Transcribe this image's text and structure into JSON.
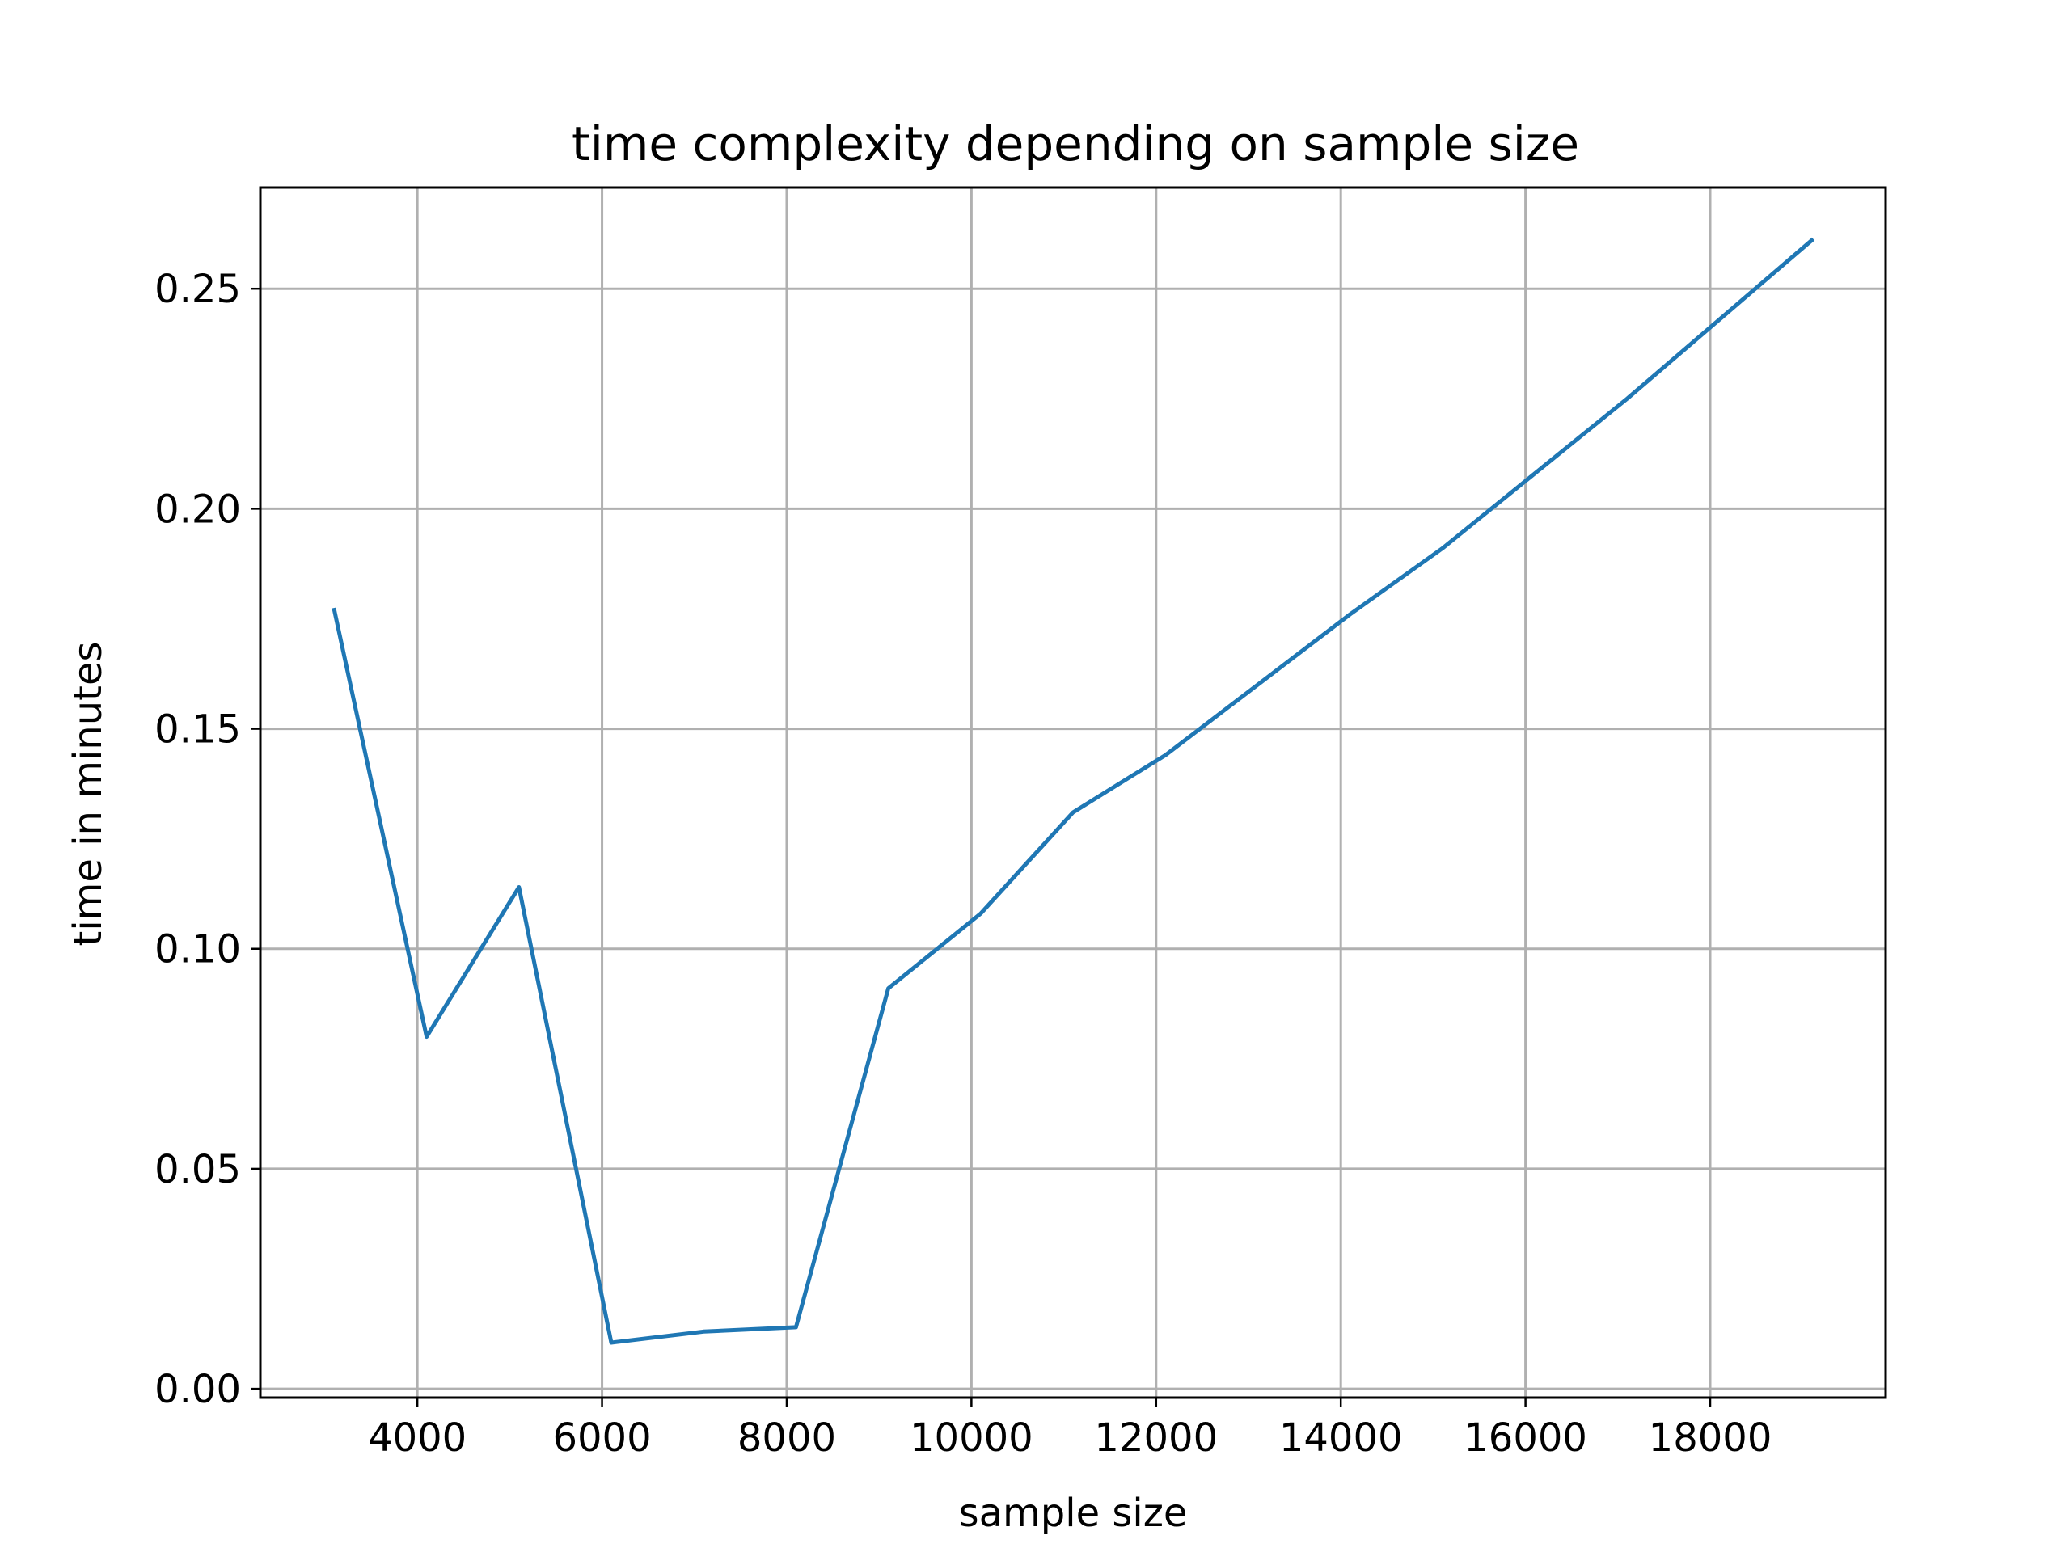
{
  "chart_data": {
    "type": "line",
    "title": "time complexity depending on sample size",
    "xlabel": "sample size",
    "ylabel": "time in minutes",
    "xlim": [
      2300,
      19900
    ],
    "ylim": [
      -0.002,
      0.273
    ],
    "grid": true,
    "x_ticks": [
      4000,
      6000,
      8000,
      10000,
      12000,
      14000,
      16000,
      18000
    ],
    "x_tick_labels": [
      "4000",
      "6000",
      "8000",
      "10000",
      "12000",
      "14000",
      "16000",
      "18000"
    ],
    "y_ticks": [
      0.0,
      0.05,
      0.1,
      0.15,
      0.2,
      0.25
    ],
    "y_tick_labels": [
      "0.00",
      "0.05",
      "0.10",
      "0.15",
      "0.20",
      "0.25"
    ],
    "series": [
      {
        "color": "#1f77b4",
        "x": [
          3100,
          4100,
          5100,
          6100,
          7100,
          8100,
          9100,
          10100,
          11100,
          12100,
          13100,
          14100,
          15100,
          16100,
          17100,
          18100,
          19100
        ],
        "y": [
          0.177,
          0.08,
          0.114,
          0.0105,
          0.013,
          0.014,
          0.091,
          0.108,
          0.131,
          0.144,
          0.16,
          0.176,
          0.191,
          0.208,
          0.225,
          0.243,
          0.261
        ]
      }
    ]
  }
}
